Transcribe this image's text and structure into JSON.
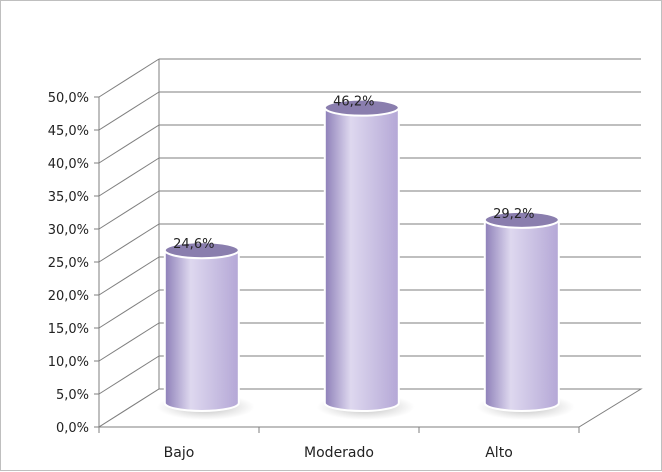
{
  "chart_data": {
    "type": "bar",
    "style": "3d-cylinder",
    "categories": [
      "Bajo",
      "Moderado",
      "Alto"
    ],
    "values": [
      24.6,
      46.2,
      29.2
    ],
    "data_labels": [
      "24,6%",
      "46,2%",
      "29,2%"
    ],
    "yticks": [
      "0,0%",
      "5,0%",
      "10,0%",
      "15,0%",
      "20,0%",
      "25,0%",
      "30,0%",
      "35,0%",
      "40,0%",
      "45,0%",
      "50,0%"
    ],
    "ylim": [
      0,
      50
    ],
    "grid": true,
    "legend": "none",
    "title": "",
    "xlabel": "",
    "ylabel": "",
    "colors": {
      "bar_fill": "#b4a7d6",
      "bar_dark": "#8d7fb8",
      "bar_light": "#ded8ef",
      "top_fill": "#8a7eae",
      "grid": "#7f7f7f",
      "text": "#222222"
    }
  }
}
